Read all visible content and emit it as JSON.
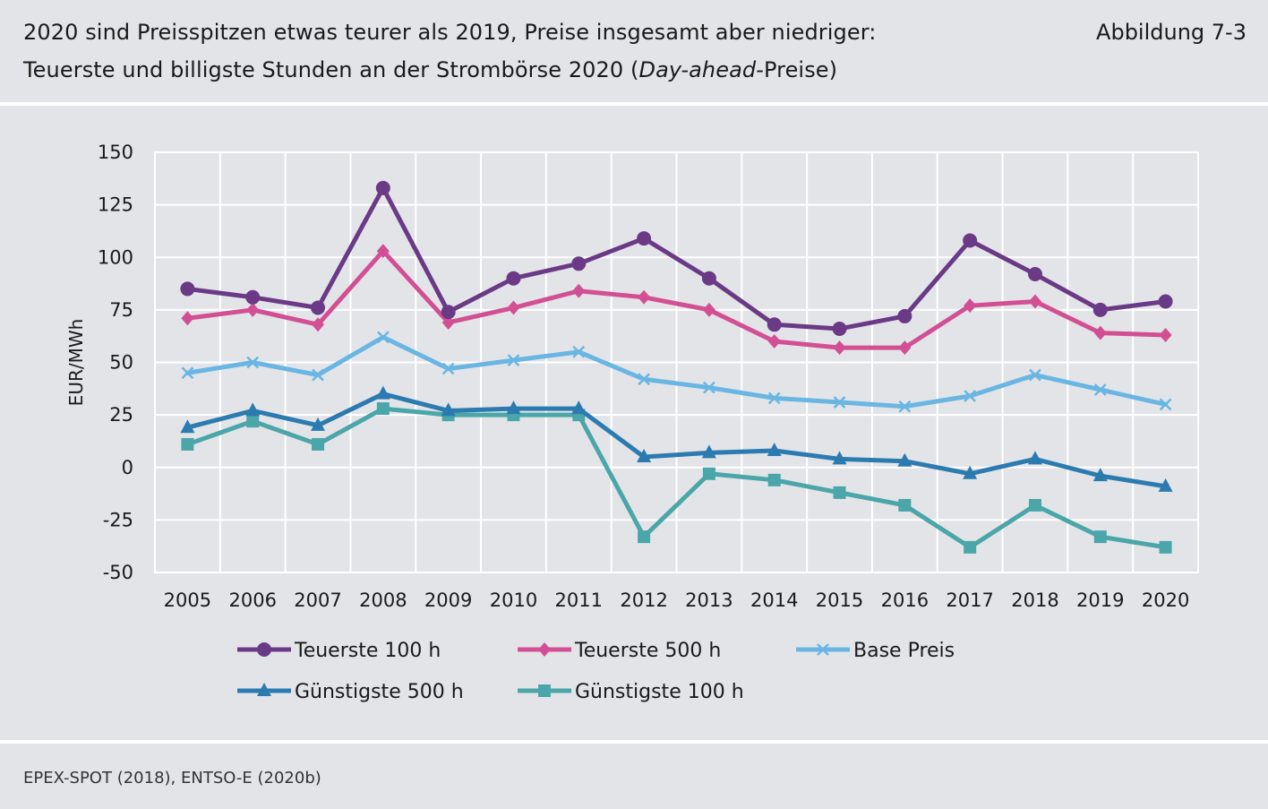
{
  "header": {
    "title_line1": "2020 sind Preisspitzen etwas teurer als 2019, Preise insgesamt aber niedriger:",
    "title_line2_pre": "Teuerste und billigste Stunden an der Strombörse 2020 (",
    "title_line2_em": "Day-ahead",
    "title_line2_post": "-Preise)",
    "figure_number": "Abbildung 7-3"
  },
  "source": "EPEX-SPOT (2018), ENTSO-E (2020b)",
  "chart_data": {
    "type": "line",
    "title": "",
    "xlabel": "",
    "ylabel": "EUR/MWh",
    "ylim": [
      -50,
      150
    ],
    "yticks": [
      150,
      125,
      100,
      75,
      50,
      25,
      0,
      -25,
      -50
    ],
    "grid": true,
    "legend_position": "bottom",
    "categories": [
      "2005",
      "2006",
      "2007",
      "2008",
      "2009",
      "2010",
      "2011",
      "2012",
      "2013",
      "2014",
      "2015",
      "2016",
      "2017",
      "2018",
      "2019",
      "2020"
    ],
    "series": [
      {
        "name": "Teuerste 100 h",
        "color": "#6b3a86",
        "marker": "circle",
        "values": [
          85,
          81,
          76,
          133,
          74,
          90,
          97,
          109,
          90,
          68,
          66,
          72,
          108,
          92,
          75,
          79
        ]
      },
      {
        "name": "Teuerste 500 h",
        "color": "#d24f94",
        "marker": "diamond",
        "values": [
          71,
          75,
          68,
          103,
          69,
          76,
          84,
          81,
          75,
          60,
          57,
          57,
          77,
          79,
          64,
          63
        ]
      },
      {
        "name": "Base Preis",
        "color": "#6ab6e3",
        "marker": "x",
        "values": [
          45,
          50,
          44,
          62,
          47,
          51,
          55,
          42,
          38,
          33,
          31,
          29,
          34,
          44,
          37,
          30
        ]
      },
      {
        "name": "Günstigste 500 h",
        "color": "#2c7bb0",
        "marker": "triangle",
        "values": [
          19,
          27,
          20,
          35,
          27,
          28,
          28,
          5,
          7,
          8,
          4,
          3,
          -3,
          4,
          -4,
          -9
        ]
      },
      {
        "name": "Günstigste 100 h",
        "color": "#4aa6a8",
        "marker": "square",
        "values": [
          11,
          22,
          11,
          28,
          25,
          25,
          25,
          -33,
          -3,
          -6,
          -12,
          -18,
          -38,
          -18,
          -33,
          -38
        ]
      }
    ]
  }
}
